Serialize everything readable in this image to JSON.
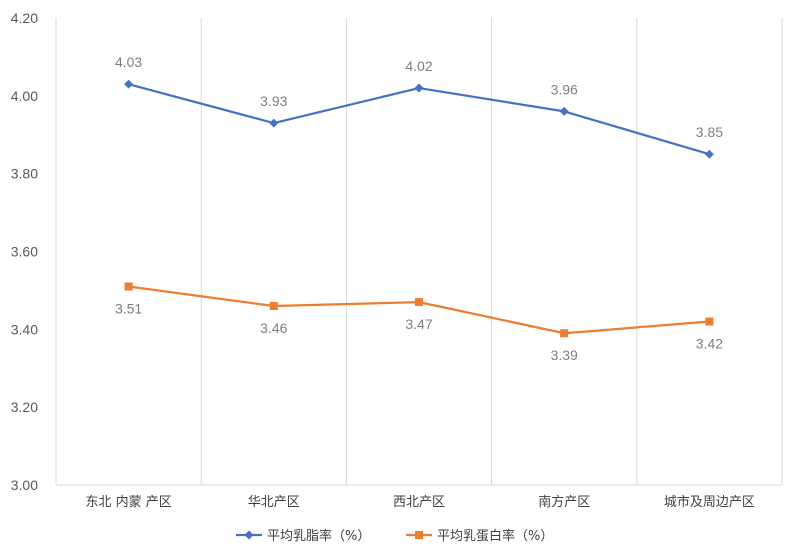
{
  "chart_data": {
    "type": "line",
    "categories": [
      "东北 内蒙 产区",
      "华北产区",
      "西北产区",
      "南方产区",
      "城市及周边产区"
    ],
    "series": [
      {
        "name": "平均乳脂率（%）",
        "values": [
          4.03,
          3.93,
          4.02,
          3.96,
          3.85
        ],
        "color": "#4472c4",
        "marker": "diamond",
        "label_position": "above"
      },
      {
        "name": "平均乳蛋白率（%）",
        "values": [
          3.51,
          3.46,
          3.47,
          3.39,
          3.42
        ],
        "color": "#ed7d31",
        "marker": "square",
        "label_position": "below"
      }
    ],
    "ylim": [
      3.0,
      4.2
    ],
    "yticks": [
      "3.00",
      "3.20",
      "3.40",
      "3.60",
      "3.80",
      "4.00",
      "4.20"
    ],
    "grid": "vertical category separators",
    "legend": "bottom"
  }
}
